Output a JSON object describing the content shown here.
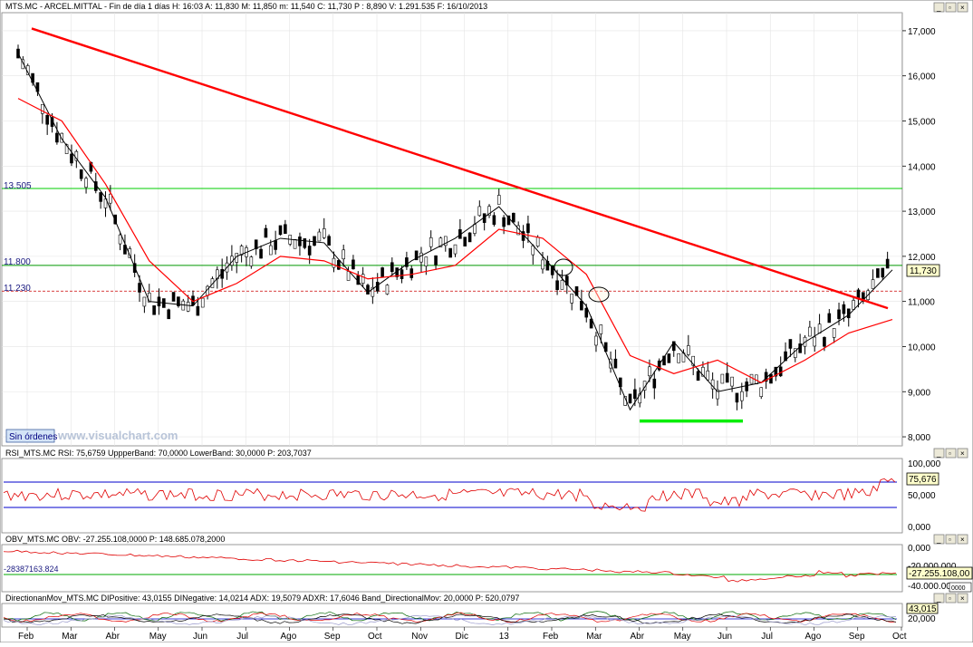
{
  "window": {
    "buttons": [
      "minimize-button",
      "restore-button",
      "close-button"
    ]
  },
  "price_panel": {
    "title": "MTS.MC - ARCEL.MITTAL - Fin de día 1 días H: 16:03 A: 11,830 M: 11,850 m: 11,540 C: 11,730 P : 8,890 V: 1.291.535 F: 16/10/2013",
    "yticks": [
      "17,000",
      "16,000",
      "15,000",
      "14,000",
      "13,000",
      "12,000",
      "11,000",
      "10,000",
      "9,000",
      "8,000"
    ],
    "hlines": [
      {
        "label": "13.505",
        "value": 13.505,
        "color": "#00cc00"
      },
      {
        "label": "11.800",
        "value": 11.8,
        "color": "#009900"
      },
      {
        "label": "11.230",
        "value": 11.23,
        "color": "#cc0000"
      }
    ],
    "last_price": "11,730",
    "badge": "Sin órdenes",
    "watermark": "www.visualchart.com"
  },
  "rsi_panel": {
    "title": "RSI_MTS.MC RSI: 75,6759 UppperBand: 70,0000 LowerBand: 30,0000 P: 203,7037",
    "yticks": [
      "100,000",
      "50,000",
      "0,000"
    ],
    "last": "75,676"
  },
  "obv_panel": {
    "title": "OBV_MTS.MC OBV: -27.255.108,0000 P: 148.685.078,2000",
    "yticks": [
      "0,000",
      "-20.000.000",
      "-40.000.000"
    ],
    "left_value": "-28387163.824",
    "last": "-27.255.108,00",
    "extra": "0000"
  },
  "dm_panel": {
    "title": "DirectionanMov_MTS.MC DIPositive: 43,0155 DINegative: 14,0214 ADX: 19,5079 ADXR: 17,6046 Band_DirectionalMov: 20,0000 P: 520,0797",
    "yticks": [
      "20,000"
    ],
    "last": "43,015"
  },
  "xaxis": {
    "months": [
      "Feb",
      "Mar",
      "Abr",
      "May",
      "Jun",
      "Jul",
      "Ago",
      "Sep",
      "Oct",
      "Nov",
      "Dic",
      "13",
      "Feb",
      "Mar",
      "Abr",
      "May",
      "Jun",
      "Jul",
      "Ago",
      "Sep",
      "Oct"
    ]
  },
  "chart_data": {
    "type": "line",
    "title": "MTS.MC - ARCEL.MITTAL - Fin de día 1 días H: 16:03 A: 11,830 M: 11,850 m: 11,540 C: 11,730 P : 8,890 V: 1.291.535 F: 16/10/2013",
    "x": [
      "Feb",
      "Mar",
      "Abr",
      "May",
      "Jun",
      "Jul",
      "Ago",
      "Sep",
      "Oct",
      "Nov",
      "Dic",
      "13",
      "Feb",
      "Mar",
      "Abr",
      "May",
      "Jun",
      "Jul",
      "Ago",
      "Sep",
      "Oct"
    ],
    "ylim": [
      7.8,
      17.4
    ],
    "series": [
      {
        "color": "#000000",
        "values": [
          16.5,
          14.6,
          13.3,
          11.0,
          10.9,
          12.0,
          12.4,
          12.3,
          11.2,
          11.9,
          12.4,
          13.1,
          12.0,
          10.9,
          8.6,
          10.1,
          9.0,
          9.2,
          10.1,
          10.7,
          11.7
        ]
      },
      {
        "color": "#ff0000",
        "values": [
          15.5,
          15.0,
          13.6,
          11.9,
          11.0,
          11.4,
          12.0,
          11.9,
          11.5,
          11.6,
          11.8,
          12.6,
          12.4,
          11.6,
          9.8,
          9.4,
          9.7,
          9.2,
          9.7,
          10.3,
          10.6
        ]
      }
    ],
    "trendline": {
      "from": [
        "Feb",
        17.05
      ],
      "to": [
        "Oct",
        10.85
      ],
      "color": "#ff0000"
    },
    "annotations": [
      {
        "type": "hline",
        "value": 8.35,
        "color": "#00ee00"
      }
    ],
    "grid": true,
    "legend": "none"
  }
}
